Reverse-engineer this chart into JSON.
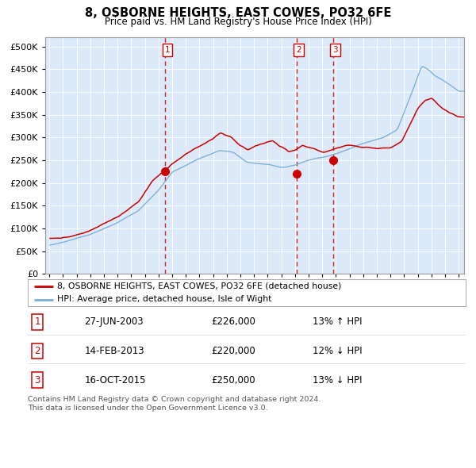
{
  "title": "8, OSBORNE HEIGHTS, EAST COWES, PO32 6FE",
  "subtitle": "Price paid vs. HM Land Registry's House Price Index (HPI)",
  "legend_line1": "8, OSBORNE HEIGHTS, EAST COWES, PO32 6FE (detached house)",
  "legend_line2": "HPI: Average price, detached house, Isle of Wight",
  "footer1": "Contains HM Land Registry data © Crown copyright and database right 2024.",
  "footer2": "This data is licensed under the Open Government Licence v3.0.",
  "transactions": [
    {
      "num": 1,
      "date": "27-JUN-2003",
      "price": 226000,
      "pct": "13%",
      "dir": "↑"
    },
    {
      "num": 2,
      "date": "14-FEB-2013",
      "price": 220000,
      "pct": "12%",
      "dir": "↓"
    },
    {
      "num": 3,
      "date": "16-OCT-2015",
      "price": 250000,
      "pct": "13%",
      "dir": "↓"
    }
  ],
  "transaction_dates_decimal": [
    2003.49,
    2013.12,
    2015.79
  ],
  "transaction_prices": [
    226000,
    220000,
    250000
  ],
  "bg_color": "#dce9f8",
  "red_line_color": "#cc0000",
  "blue_line_color": "#7aadd4",
  "dashed_line_color": "#cc0000",
  "marker_color": "#cc0000",
  "ylim": [
    0,
    520000
  ],
  "yticks": [
    0,
    50000,
    100000,
    150000,
    200000,
    250000,
    300000,
    350000,
    400000,
    450000,
    500000
  ],
  "xmin": 1994.7,
  "xmax": 2025.4
}
